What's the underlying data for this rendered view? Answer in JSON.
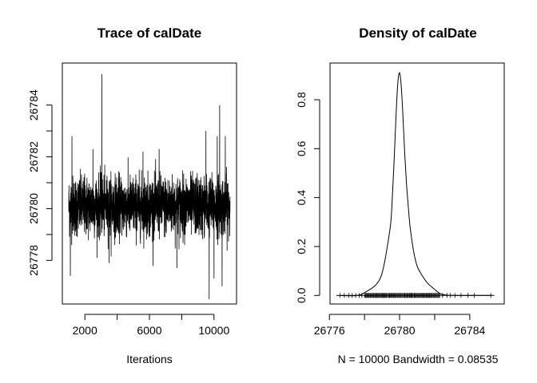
{
  "chart_data": [
    {
      "type": "line",
      "title": "Trace of calDate",
      "xlabel": "Iterations",
      "ylabel": "",
      "xlim": [
        1000,
        11000
      ],
      "ylim": [
        26776.5,
        26785.5
      ],
      "x_ticks": [
        2000,
        6000,
        10000
      ],
      "x_tick_labels": [
        "2000",
        "6000",
        "10000"
      ],
      "x_minor_ticks": [
        4000,
        8000
      ],
      "y_ticks": [
        26778,
        26780,
        26782,
        26784
      ],
      "y_tick_labels": [
        "26778",
        "26780",
        "26782",
        "26784"
      ],
      "y_minor_ticks": [
        26779,
        26781,
        26783
      ],
      "series": [
        {
          "color": "#000000",
          "n_iterations": 10000,
          "x_start": 1001,
          "x_end": 11000,
          "center": 26780.1,
          "band_low": 26779.0,
          "band_high": 26781.3,
          "spikes": [
            {
              "x": 3050,
              "y": 26785.2
            },
            {
              "x": 10350,
              "y": 26784.0
            },
            {
              "x": 10700,
              "y": 26782.8
            },
            {
              "x": 1200,
              "y": 26782.8
            },
            {
              "x": 2500,
              "y": 26782.3
            },
            {
              "x": 5600,
              "y": 26782.2
            },
            {
              "x": 6600,
              "y": 26782.3
            },
            {
              "x": 9500,
              "y": 26783.0
            },
            {
              "x": 10200,
              "y": 26782.8
            },
            {
              "x": 1100,
              "y": 26777.4
            },
            {
              "x": 3500,
              "y": 26777.9
            },
            {
              "x": 7700,
              "y": 26777.7
            },
            {
              "x": 9700,
              "y": 26776.5
            },
            {
              "x": 10000,
              "y": 26777.3
            },
            {
              "x": 10500,
              "y": 26777.0
            }
          ]
        }
      ],
      "grid": false,
      "legend": "none"
    },
    {
      "type": "line",
      "title": "Density of calDate",
      "xlabel": "N = 10000   Bandwidth = 0.08535",
      "ylabel": "",
      "xlim": [
        26776.4,
        26785.6
      ],
      "ylim": [
        -0.035,
        0.95
      ],
      "x_ticks": [
        26776,
        26780,
        26784
      ],
      "x_tick_labels": [
        "26776",
        "26780",
        "26784"
      ],
      "x_minor_ticks": [
        26778,
        26782
      ],
      "y_ticks": [
        0.0,
        0.2,
        0.4,
        0.6,
        0.8
      ],
      "y_tick_labels": [
        "0.0",
        "0.2",
        "0.4",
        "0.6",
        "0.8"
      ],
      "series": [
        {
          "color": "#000000",
          "x": [
            26776.4,
            26777.6,
            26778.2,
            26778.6,
            26778.9,
            26779.1,
            26779.3,
            26779.5,
            26779.6,
            26779.7,
            26779.8,
            26779.9,
            26780.0,
            26780.1,
            26780.2,
            26780.3,
            26780.4,
            26780.5,
            26780.6,
            26780.8,
            26781.0,
            26781.3,
            26781.6,
            26782.0,
            26782.4,
            26783.2,
            26785.2
          ],
          "y": [
            0.0,
            0.0,
            0.02,
            0.04,
            0.07,
            0.12,
            0.2,
            0.3,
            0.42,
            0.57,
            0.74,
            0.87,
            0.91,
            0.85,
            0.72,
            0.57,
            0.45,
            0.36,
            0.28,
            0.18,
            0.12,
            0.08,
            0.05,
            0.025,
            0.005,
            0.0,
            0.0
          ]
        }
      ],
      "rug": {
        "color": "#000000",
        "dense_from": 26778.0,
        "dense_to": 26782.3,
        "sparse_points": [
          26776.6,
          26776.85,
          26777.1,
          26777.3,
          26777.5,
          26777.7,
          26777.85,
          26782.45,
          26782.7,
          26782.9,
          26783.15,
          26783.5,
          26783.9,
          26784.25,
          26785.2
        ]
      },
      "grid": false,
      "legend": "none"
    }
  ]
}
